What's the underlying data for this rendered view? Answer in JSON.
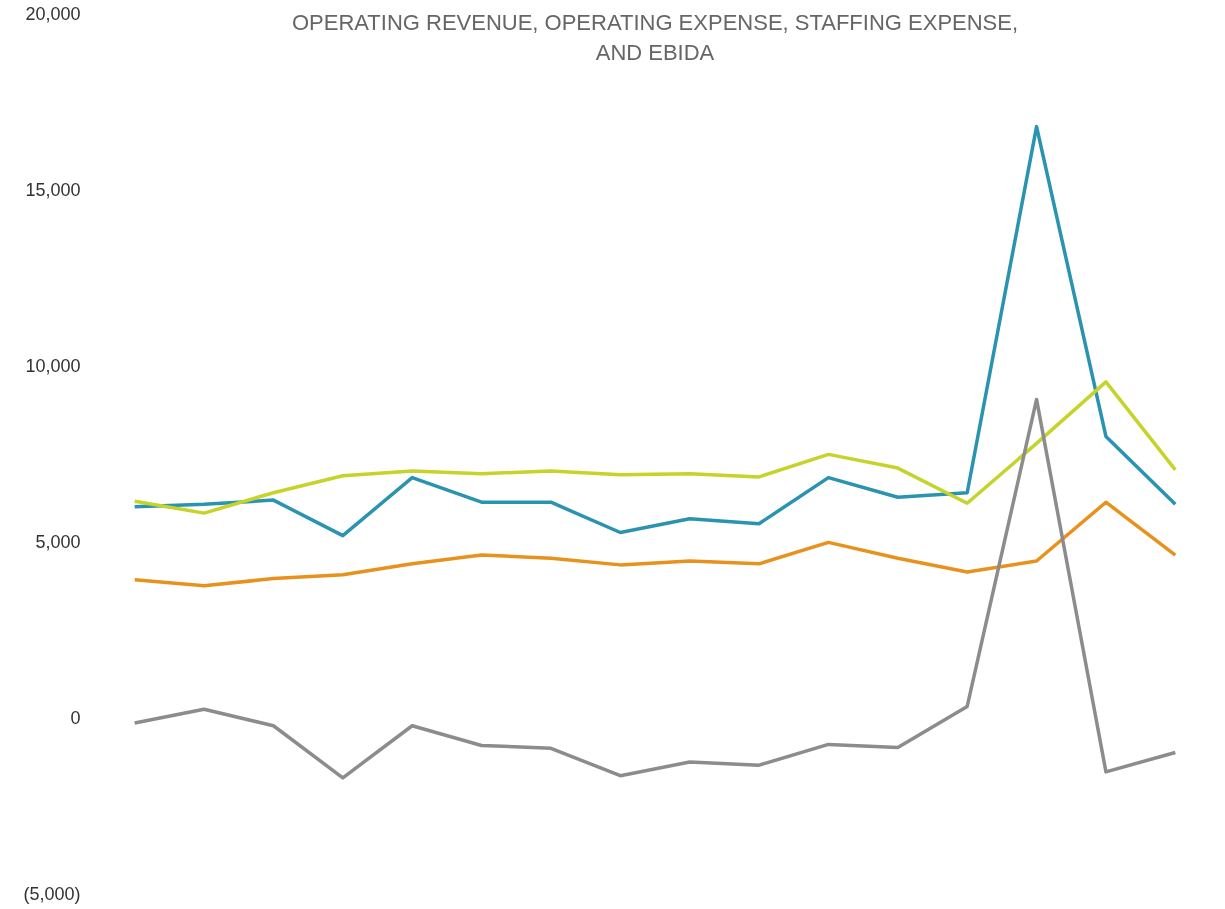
{
  "chart_data": {
    "type": "line",
    "title": [
      "OPERATING REVENUE, OPERATING EXPENSE, STAFFING EXPENSE,",
      "AND EBIDA"
    ],
    "categories": [
      null,
      null,
      null,
      null,
      null,
      null,
      null,
      null,
      null,
      null,
      null,
      null,
      null,
      null,
      null,
      null
    ],
    "series": [
      {
        "color": "#2a93b0",
        "values": [
          6000,
          6070,
          6190,
          5180,
          6830,
          6130,
          6130,
          5270,
          5660,
          5520,
          6830,
          6270,
          6400,
          16800,
          8000,
          6070
        ]
      },
      {
        "color": "#c5d32b",
        "values": [
          6160,
          5820,
          6400,
          6880,
          7020,
          6940,
          7020,
          6910,
          6940,
          6850,
          7490,
          7100,
          6100,
          7800,
          9550,
          7050
        ]
      },
      {
        "color": "#e8921e",
        "values": [
          3930,
          3760,
          3960,
          4070,
          4380,
          4630,
          4540,
          4350,
          4460,
          4380,
          4990,
          4540,
          4150,
          4460,
          6130,
          4630
        ]
      },
      {
        "color": "#8c8c8c",
        "values": [
          -140,
          250,
          -220,
          -1700,
          -220,
          -780,
          -860,
          -1640,
          -1250,
          -1340,
          -750,
          -840,
          330,
          9050,
          -1530,
          -980
        ]
      }
    ],
    "ylim": [
      -5000,
      20000
    ],
    "yticks": [
      {
        "value": -5000,
        "label": "(5,000)"
      },
      0,
      {
        "value": 5000,
        "label": "5,000"
      },
      {
        "value": 10000,
        "label": "10,000"
      },
      {
        "value": 15000,
        "label": "15,000"
      },
      {
        "value": 20000,
        "label": "20,000"
      }
    ]
  }
}
